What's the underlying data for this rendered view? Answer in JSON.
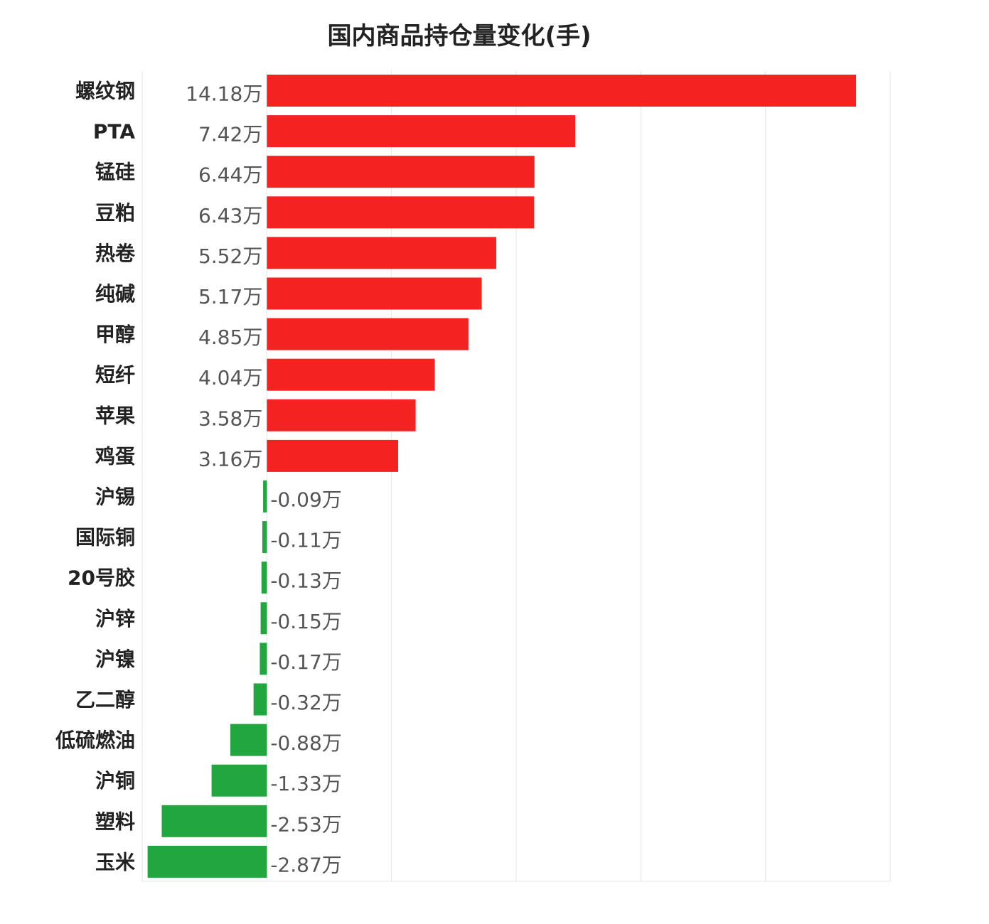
{
  "chart_data": {
    "type": "bar",
    "orientation": "horizontal",
    "title": "国内商品持仓量变化(手)",
    "xlabel": "",
    "ylabel": "",
    "unit": "万",
    "categories": [
      "螺纹钢",
      "PTA",
      "锰硅",
      "豆粕",
      "热卷",
      "纯碱",
      "甲醇",
      "短纤",
      "苹果",
      "鸡蛋",
      "沪锡",
      "国际铜",
      "20号胶",
      "沪锌",
      "沪镍",
      "乙二醇",
      "低硫燃油",
      "沪铜",
      "塑料",
      "玉米"
    ],
    "values": [
      14.18,
      7.42,
      6.44,
      6.43,
      5.52,
      5.17,
      4.85,
      4.04,
      3.58,
      3.16,
      -0.09,
      -0.11,
      -0.13,
      -0.15,
      -0.17,
      -0.32,
      -0.88,
      -1.33,
      -2.53,
      -2.87
    ],
    "value_labels": [
      "14.18万",
      "7.42万",
      "6.44万",
      "6.43万",
      "5.52万",
      "5.17万",
      "4.85万",
      "4.04万",
      "3.58万",
      "3.16万",
      "-0.09万",
      "-0.11万",
      "-0.13万",
      "-0.15万",
      "-0.17万",
      "-0.32万",
      "-0.88万",
      "-1.33万",
      "-2.53万",
      "-2.87万"
    ],
    "xlim": [
      -3,
      15
    ],
    "grid": true,
    "legend": "none",
    "colors": {
      "positive": "#f52222",
      "negative": "#22a63f"
    }
  }
}
